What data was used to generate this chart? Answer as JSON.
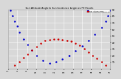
{
  "title": "Sun Altitude Angle & Sun Incidence Angle on PV Panels",
  "legend_labels": [
    "Sun Altitude Angle",
    "Sun Incidence Angle on PV"
  ],
  "legend_colors": [
    "#0000cc",
    "#cc0000"
  ],
  "background_color": "#d8d8d8",
  "grid_color": "#ffffff",
  "xlim": [
    0,
    47
  ],
  "ylim": [
    0,
    90
  ],
  "yticks": [
    10,
    20,
    30,
    40,
    50,
    60,
    70,
    80,
    90
  ],
  "altitude_x": [
    1,
    2,
    3,
    4,
    5,
    7,
    9,
    11,
    13,
    16,
    19,
    22,
    25,
    28,
    31,
    34,
    37,
    40,
    43,
    45,
    46,
    47
  ],
  "altitude_y": [
    88,
    80,
    72,
    64,
    55,
    45,
    36,
    28,
    20,
    12,
    8,
    10,
    14,
    20,
    27,
    34,
    42,
    52,
    62,
    72,
    80,
    88
  ],
  "incidence_x": [
    3,
    5,
    7,
    9,
    11,
    13,
    15,
    17,
    19,
    21,
    23,
    25,
    27,
    29,
    31,
    33,
    35,
    37,
    39,
    41,
    43,
    45
  ],
  "incidence_y": [
    5,
    10,
    16,
    22,
    28,
    33,
    38,
    42,
    44,
    45,
    45,
    44,
    43,
    41,
    38,
    35,
    30,
    25,
    20,
    15,
    10,
    5
  ]
}
